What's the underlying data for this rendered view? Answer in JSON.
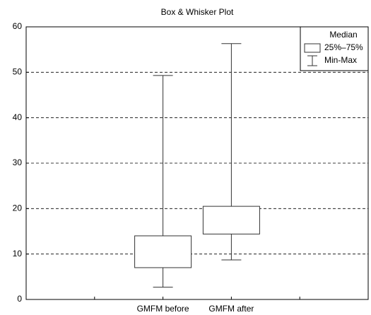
{
  "chart_data": {
    "type": "box",
    "title": "Box & Whisker Plot",
    "categories": [
      "GMFM before",
      "GMFM after"
    ],
    "min": [
      2.7,
      8.7
    ],
    "q1": [
      7,
      14.4
    ],
    "q3": [
      14,
      20.5
    ],
    "max": [
      49.3,
      56.3
    ],
    "ylim": [
      0,
      60
    ],
    "yticks": [
      0,
      10,
      20,
      30,
      40,
      50,
      60
    ],
    "grid": true,
    "legend": [
      "Median",
      "25%–75%",
      "Min-Max"
    ],
    "legend_position": "upper right"
  }
}
